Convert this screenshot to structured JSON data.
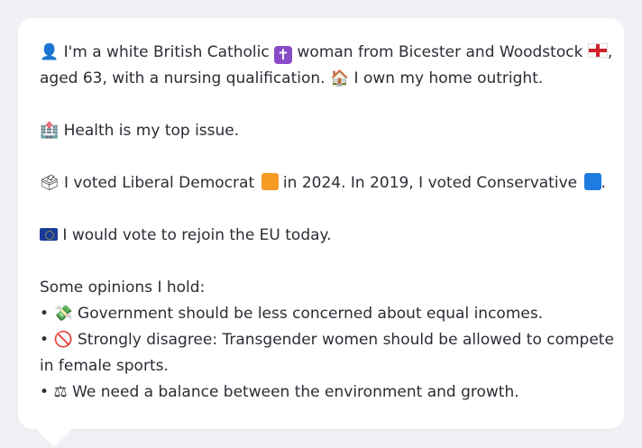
{
  "persona": {
    "line1a": "I'm a white British Catholic",
    "line1b": "woman from Bicester and Woodstock",
    "line1c": ",",
    "line2a": "aged 63, with a nursing qualification.",
    "line2b": "I own my home outright.",
    "health": "Health is my top issue.",
    "vote_a": "I voted Liberal Democrat",
    "vote_b": "in 2024. In 2019, I voted Conservative",
    "vote_c": ".",
    "eu": "I would vote to rejoin the EU today.",
    "opinions_header": "Some opinions I hold:",
    "bullet": "•",
    "op1": "Government should be less concerned about equal incomes.",
    "op2a": "Strongly disagree: Transgender women should be allowed to compete",
    "op2b": "in female sports.",
    "op3": "We need a balance between the environment and growth."
  },
  "icons": {
    "person": "👤",
    "cross": "✝",
    "house": "🏠",
    "hospital": "🏥",
    "ballot": "🗳",
    "prohibited": "🚫",
    "scales": "⚖",
    "money": "💸"
  },
  "colors": {
    "libdem": "#f59a23",
    "conservative": "#1e7be0",
    "text": "#2a2d34",
    "background": "#eff1f4"
  }
}
